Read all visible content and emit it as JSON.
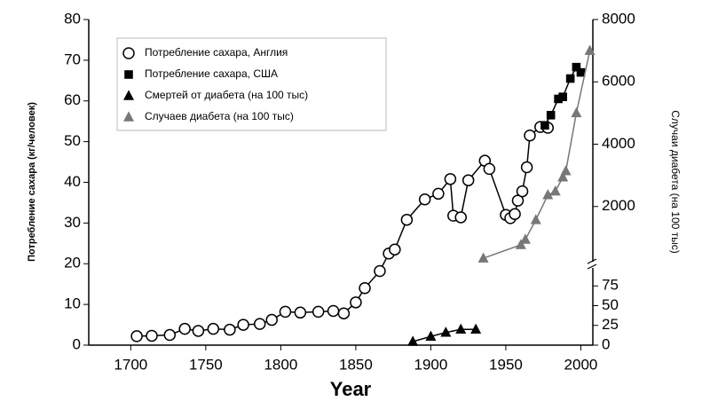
{
  "chart_data": {
    "type": "scatter",
    "xlabel": "Year",
    "ylabel": "Потребление сахара (кг/человек)",
    "y2label": "Случаи диабета (на 100 тыс)",
    "xlim": [
      1672,
      2008
    ],
    "xticks": [
      1700,
      1750,
      1800,
      1850,
      1900,
      1950,
      2000
    ],
    "ylim": [
      0,
      80
    ],
    "yticks": [
      0,
      10,
      20,
      30,
      40,
      50,
      60,
      70,
      80
    ],
    "y2lim": [
      0,
      8000
    ],
    "y2ticks": [
      2000,
      4000,
      6000,
      8000
    ],
    "y3lim": [
      0,
      100
    ],
    "y3ticks": [
      0,
      25,
      50,
      75
    ],
    "legend": "upper left",
    "series": [
      {
        "name": "Потребление сахара, Англия",
        "marker": "circle",
        "color": "#000000",
        "axis": "y",
        "x": [
          1704,
          1714,
          1726,
          1736,
          1745,
          1755,
          1766,
          1775,
          1786,
          1794,
          1803,
          1813,
          1825,
          1835,
          1842,
          1850,
          1856,
          1866,
          1872,
          1876,
          1884,
          1896,
          1905,
          1913,
          1915,
          1920,
          1925,
          1936,
          1939,
          1950,
          1953,
          1956,
          1958,
          1961,
          1964,
          1966,
          1973,
          1978
        ],
        "values": [
          2.2,
          2.3,
          2.5,
          4,
          3.5,
          4,
          3.8,
          5,
          5.2,
          6.2,
          8.2,
          8,
          8.2,
          8.4,
          7.8,
          10.5,
          14,
          18.2,
          22.5,
          23.5,
          30.8,
          35.8,
          37.2,
          40.8,
          31.8,
          31.4,
          40.5,
          45.3,
          43.3,
          32,
          31.2,
          32.2,
          35.5,
          37.8,
          43.7,
          51.5,
          53.6,
          53.4
        ]
      },
      {
        "name": "Потребление сахара, США",
        "marker": "square",
        "color": "#000000",
        "axis": "y",
        "x": [
          1976,
          1980,
          1985,
          1988,
          1993,
          1997,
          2000
        ],
        "values": [
          54,
          56.5,
          60.5,
          61,
          65.5,
          68.3,
          67
        ]
      },
      {
        "name": "Смертей от диабета (на 100 тыс)",
        "marker": "triangle",
        "color": "#000000",
        "axis": "y3",
        "x": [
          1888,
          1900,
          1910,
          1920,
          1930
        ],
        "values": [
          4.5,
          11,
          16,
          20,
          20
        ]
      },
      {
        "name": "Случаев диабета (на 100 тыс)",
        "marker": "triangle",
        "color": "#777777",
        "axis": "y2",
        "x": [
          1935,
          1960,
          1963,
          1970,
          1978,
          1983,
          1988,
          1990,
          1997,
          2006
        ],
        "values": [
          340,
          770,
          940,
          1570,
          2370,
          2490,
          2940,
          3140,
          5000,
          7000
        ]
      }
    ]
  }
}
